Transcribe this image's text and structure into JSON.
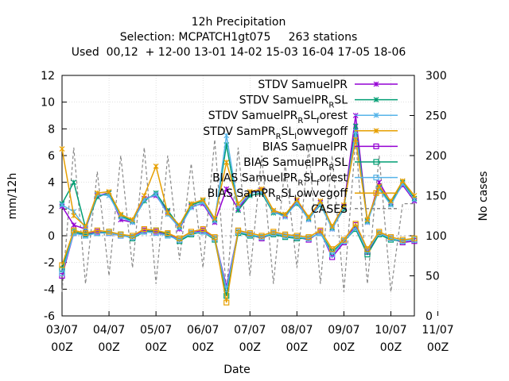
{
  "chart_data": {
    "type": "line",
    "title": "12h Precipitation",
    "subtitle": "Selection: MCPATCH1gt075     263 stations",
    "used_line": "Used  00,12  + 12-00 13-01 14-02 15-03 16-04 17-05 18-06",
    "xlabel": "Date",
    "ylabel": "mm/12h",
    "y2label": "No cases",
    "ylim": [
      -6,
      12
    ],
    "y2lim": [
      0,
      300
    ],
    "yticks": [
      "-6",
      "-4",
      "-2",
      "0",
      "2",
      "4",
      "6",
      "8",
      "10",
      "12"
    ],
    "y2ticks": [
      "0",
      "50",
      "100",
      "150",
      "200",
      "250",
      "300"
    ],
    "xticks": [
      {
        "top": "03/07",
        "bottom": "00Z"
      },
      {
        "top": "04/07",
        "bottom": "00Z"
      },
      {
        "top": "05/07",
        "bottom": "00Z"
      },
      {
        "top": "06/07",
        "bottom": "00Z"
      },
      {
        "top": "07/07",
        "bottom": "00Z"
      },
      {
        "top": "08/07",
        "bottom": "00Z"
      },
      {
        "top": "09/07",
        "bottom": "00Z"
      },
      {
        "top": "10/07",
        "bottom": "00Z"
      },
      {
        "top": "11/07",
        "bottom": "00Z"
      }
    ],
    "x": [
      0,
      0.5,
      1,
      1.5,
      2,
      2.5,
      3,
      3.5,
      4,
      4.5,
      5,
      5.5,
      6,
      6.5,
      7,
      7.5,
      8,
      8.5,
      9,
      9.5,
      10,
      10.5,
      11,
      11.5,
      12,
      12.5,
      13,
      13.5,
      14,
      14.5,
      15
    ],
    "x_unit": "days since 03/07 00Z",
    "grid": true,
    "legend_position": "top-right",
    "series": [
      {
        "name": "STDV SamuelPR",
        "legend_html": "STDV SamuelPR",
        "color": "#9400d3",
        "marker": "x",
        "dash": "",
        "axis": "y",
        "values": [
          2.2,
          0.8,
          0.5,
          3.0,
          3.2,
          1.2,
          1.0,
          2.8,
          3.0,
          1.8,
          0.5,
          2.2,
          2.4,
          1.0,
          3.5,
          2.0,
          3.2,
          3.4,
          1.8,
          1.5,
          2.6,
          1.2,
          2.5,
          0.5,
          2.2,
          9.0,
          1.0,
          4.0,
          2.5,
          3.8,
          2.6
        ]
      },
      {
        "name": "STDV SamuelPR_R SL",
        "legend_html": "STDV SamuelPR<tspan dy='5' font-size='10'>R</tspan><tspan dy='-5'>SL</tspan>",
        "color": "#009e73",
        "marker": "x",
        "dash": "",
        "axis": "y",
        "values": [
          2.4,
          4.0,
          0.6,
          2.9,
          3.2,
          1.5,
          1.1,
          2.6,
          3.2,
          1.9,
          0.7,
          2.3,
          2.6,
          1.2,
          6.8,
          1.9,
          3.0,
          3.2,
          1.7,
          1.6,
          2.4,
          1.3,
          2.3,
          0.6,
          2.0,
          8.2,
          1.1,
          3.6,
          2.4,
          4.0,
          2.8
        ]
      },
      {
        "name": "STDV SamuelPR_R SL_forest",
        "legend_html": "STDV SamuelPR<tspan dy='5' font-size='10'>R</tspan><tspan dy='-5'>SL</tspan><tspan dy='5' font-size='10'>f</tspan><tspan dy='-5'>orest</tspan>",
        "color": "#56b4e9",
        "marker": "x",
        "dash": "",
        "axis": "y",
        "values": [
          2.3,
          1.8,
          0.6,
          3.1,
          3.0,
          1.4,
          1.0,
          2.7,
          3.1,
          1.6,
          0.6,
          2.1,
          2.5,
          1.1,
          7.5,
          2.2,
          3.2,
          3.3,
          1.8,
          1.4,
          2.5,
          1.2,
          2.4,
          0.5,
          2.1,
          7.8,
          1.0,
          3.5,
          2.3,
          3.9,
          2.7
        ]
      },
      {
        "name": "STDV SamPR_R SL_lowvegoff",
        "legend_html": "STDV SamPR<tspan dy='5' font-size='10'>R</tspan><tspan dy='-5'>SL</tspan><tspan dy='5' font-size='10'>l</tspan><tspan dy='-5'>owvegoff</tspan>",
        "color": "#e69f00",
        "marker": "x",
        "dash": "",
        "axis": "y",
        "values": [
          6.5,
          1.5,
          0.7,
          3.2,
          3.3,
          1.6,
          1.2,
          3.0,
          5.2,
          1.7,
          0.8,
          2.4,
          2.7,
          1.3,
          5.5,
          2.4,
          3.3,
          3.5,
          1.9,
          1.6,
          2.7,
          1.4,
          2.6,
          0.7,
          2.3,
          7.2,
          1.2,
          3.7,
          2.6,
          4.1,
          3.0
        ]
      },
      {
        "name": "BIAS SamuelPR",
        "legend_html": "BIAS SamuelPR",
        "color": "#9400d3",
        "marker": "square",
        "dash": "",
        "axis": "y",
        "values": [
          -3.0,
          0.2,
          0.1,
          0.3,
          0.2,
          0.0,
          -0.1,
          0.4,
          0.3,
          0.1,
          -0.3,
          0.2,
          0.4,
          -0.2,
          -3.8,
          0.3,
          0.1,
          -0.2,
          0.2,
          0.0,
          -0.1,
          -0.3,
          0.3,
          -1.6,
          -0.5,
          0.8,
          -1.2,
          0.2,
          -0.2,
          -0.5,
          -0.4
        ]
      },
      {
        "name": "BIAS SamuelPR_R SL",
        "legend_html": "BIAS SamuelPR<tspan dy='5' font-size='10'>R</tspan><tspan dy='-5'>SL</tspan>",
        "color": "#009e73",
        "marker": "square",
        "dash": "",
        "axis": "y",
        "values": [
          -2.5,
          0.3,
          0.1,
          0.2,
          0.3,
          0.1,
          -0.2,
          0.3,
          0.4,
          0.1,
          -0.4,
          0.1,
          0.3,
          -0.3,
          -4.5,
          0.2,
          0.0,
          -0.1,
          0.1,
          -0.1,
          -0.2,
          -0.2,
          0.2,
          -1.2,
          -0.4,
          0.5,
          -1.4,
          0.1,
          -0.3,
          -0.4,
          -0.3
        ]
      },
      {
        "name": "BIAS SamuelPR_R SL_forest",
        "legend_html": "BIAS SamuelPR<tspan dy='5' font-size='10'>R</tspan><tspan dy='-5'>SL</tspan><tspan dy='5' font-size='10'>f</tspan><tspan dy='-5'>orest</tspan>",
        "color": "#56b4e9",
        "marker": "square",
        "dash": "",
        "axis": "y",
        "values": [
          -2.8,
          0.2,
          0.0,
          0.2,
          0.2,
          0.0,
          -0.1,
          0.3,
          0.2,
          0.0,
          -0.3,
          0.2,
          0.3,
          -0.2,
          -4.0,
          0.3,
          0.1,
          -0.1,
          0.2,
          0.0,
          -0.1,
          -0.2,
          0.2,
          -1.4,
          -0.4,
          0.6,
          -1.1,
          0.2,
          -0.2,
          -0.4,
          -0.3
        ]
      },
      {
        "name": "BIAS SamPR_R SL_lowvegoff",
        "legend_html": "BIAS SamPR<tspan dy='5' font-size='10'>R</tspan><tspan dy='-5'>SL</tspan><tspan dy='5' font-size='10'>l</tspan><tspan dy='-5'>owvegoff</tspan>",
        "color": "#e69f00",
        "marker": "square",
        "dash": "",
        "axis": "y",
        "values": [
          -2.2,
          0.4,
          0.2,
          0.4,
          0.3,
          0.1,
          0.0,
          0.5,
          0.4,
          0.2,
          -0.2,
          0.3,
          0.5,
          -0.1,
          -5.0,
          0.4,
          0.2,
          0.0,
          0.3,
          0.1,
          0.0,
          -0.1,
          0.4,
          -1.0,
          -0.3,
          0.9,
          -1.0,
          0.3,
          -0.1,
          -0.3,
          -0.2
        ]
      },
      {
        "name": "CASES",
        "legend_html": "CASES",
        "color": "#888888",
        "marker": "",
        "dash": "4,3",
        "axis": "y2",
        "values": [
          30,
          210,
          40,
          180,
          50,
          200,
          60,
          210,
          40,
          200,
          70,
          190,
          60,
          220,
          30,
          210,
          50,
          200,
          40,
          190,
          60,
          210,
          40,
          200,
          30,
          220,
          40,
          200,
          30,
          140,
          140
        ]
      }
    ]
  }
}
